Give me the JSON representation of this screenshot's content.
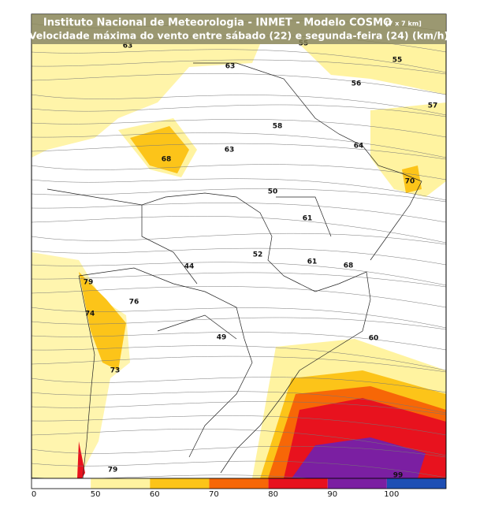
{
  "header": {
    "title": "Instituto Nacional de Meteorologia - INMET - Modelo COSMO",
    "resolution": "[7 x 7 km]",
    "subtitle": "Velocidade máxima do vento entre sábado (22) e segunda-feira (24) (km/h)"
  },
  "labels": [
    63,
    55,
    55,
    63,
    56,
    57,
    58,
    64,
    63,
    68,
    70,
    50,
    61,
    52,
    61,
    44,
    68,
    79,
    76,
    74,
    49,
    60,
    73,
    79,
    99
  ],
  "colorbar": {
    "ticks": [
      0,
      50,
      60,
      70,
      80,
      90,
      100
    ],
    "colors": [
      "#ffffff",
      "#fff3a0",
      "#fcc419",
      "#f76707",
      "#e8121e",
      "#7b1fa2",
      "#1e4fb4"
    ]
  }
}
